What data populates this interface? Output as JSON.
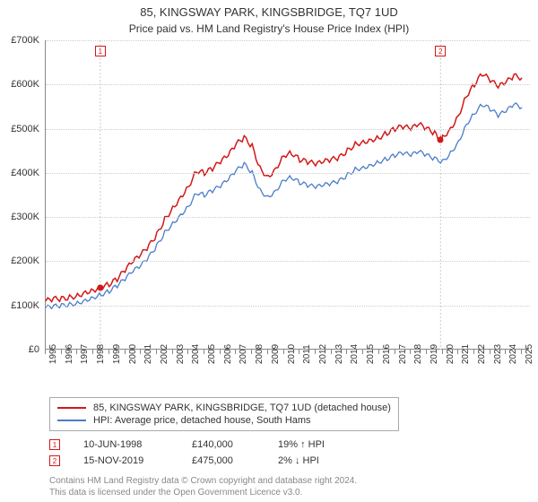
{
  "title_line1": "85, KINGSWAY PARK, KINGSBRIDGE, TQ7 1UD",
  "title_line2": "Price paid vs. HM Land Registry's House Price Index (HPI)",
  "chart": {
    "type": "line",
    "background_color": "#ffffff",
    "grid_color": "#cccccc",
    "axis_color": "#888888",
    "label_fontsize": 11,
    "x_ticks": [
      "1995",
      "1996",
      "1997",
      "1998",
      "1999",
      "2000",
      "2001",
      "2002",
      "2003",
      "2004",
      "2005",
      "2006",
      "2007",
      "2008",
      "2009",
      "2010",
      "2011",
      "2012",
      "2013",
      "2014",
      "2015",
      "2016",
      "2017",
      "2018",
      "2019",
      "2020",
      "2021",
      "2022",
      "2023",
      "2024",
      "2025"
    ],
    "x_min": 1995,
    "x_max": 2025.5,
    "y_min": 0,
    "y_max": 700,
    "y_currency_prefix": "£",
    "y_ticks": [
      {
        "val": 0,
        "label": "£0"
      },
      {
        "val": 100,
        "label": "£100K"
      },
      {
        "val": 200,
        "label": "£200K"
      },
      {
        "val": 300,
        "label": "£300K"
      },
      {
        "val": 400,
        "label": "£400K"
      },
      {
        "val": 500,
        "label": "£500K"
      },
      {
        "val": 600,
        "label": "£600K"
      },
      {
        "val": 700,
        "label": "£700K"
      }
    ],
    "series": [
      {
        "id": "property",
        "label": "85, KINGSWAY PARK, KINGSBRIDGE, TQ7 1UD (detached house)",
        "color": "#d31818",
        "line_width": 1.5,
        "points": [
          [
            1995.0,
            110
          ],
          [
            1995.5,
            115
          ],
          [
            1996.0,
            115
          ],
          [
            1996.5,
            118
          ],
          [
            1997.0,
            122
          ],
          [
            1997.5,
            130
          ],
          [
            1998.0,
            135
          ],
          [
            1998.44,
            140
          ],
          [
            1999.0,
            148
          ],
          [
            1999.5,
            160
          ],
          [
            2000.0,
            180
          ],
          [
            2000.5,
            200
          ],
          [
            2001.0,
            215
          ],
          [
            2001.5,
            235
          ],
          [
            2002.0,
            260
          ],
          [
            2002.5,
            295
          ],
          [
            2003.0,
            320
          ],
          [
            2003.5,
            345
          ],
          [
            2004.0,
            370
          ],
          [
            2004.5,
            405
          ],
          [
            2005.0,
            400
          ],
          [
            2005.5,
            410
          ],
          [
            2006.0,
            425
          ],
          [
            2006.5,
            440
          ],
          [
            2007.0,
            465
          ],
          [
            2007.5,
            480
          ],
          [
            2008.0,
            460
          ],
          [
            2008.5,
            410
          ],
          [
            2009.0,
            390
          ],
          [
            2009.5,
            410
          ],
          [
            2010.0,
            440
          ],
          [
            2010.5,
            445
          ],
          [
            2011.0,
            430
          ],
          [
            2011.5,
            425
          ],
          [
            2012.0,
            420
          ],
          [
            2012.5,
            425
          ],
          [
            2013.0,
            430
          ],
          [
            2013.5,
            435
          ],
          [
            2014.0,
            450
          ],
          [
            2014.5,
            465
          ],
          [
            2015.0,
            470
          ],
          [
            2015.5,
            475
          ],
          [
            2016.0,
            480
          ],
          [
            2016.5,
            490
          ],
          [
            2017.0,
            500
          ],
          [
            2017.5,
            505
          ],
          [
            2018.0,
            500
          ],
          [
            2018.5,
            510
          ],
          [
            2019.0,
            500
          ],
          [
            2019.5,
            490
          ],
          [
            2019.87,
            475
          ],
          [
            2020.0,
            480
          ],
          [
            2020.5,
            500
          ],
          [
            2021.0,
            530
          ],
          [
            2021.5,
            575
          ],
          [
            2022.0,
            600
          ],
          [
            2022.5,
            625
          ],
          [
            2023.0,
            610
          ],
          [
            2023.5,
            595
          ],
          [
            2024.0,
            605
          ],
          [
            2024.5,
            620
          ],
          [
            2025.0,
            615
          ]
        ]
      },
      {
        "id": "hpi",
        "label": "HPI: Average price, detached house, South Hams",
        "color": "#4a7dc9",
        "line_width": 1.3,
        "points": [
          [
            1995.0,
            95
          ],
          [
            1995.5,
            98
          ],
          [
            1996.0,
            100
          ],
          [
            1996.5,
            102
          ],
          [
            1997.0,
            105
          ],
          [
            1997.5,
            112
          ],
          [
            1998.0,
            118
          ],
          [
            1998.5,
            125
          ],
          [
            1999.0,
            132
          ],
          [
            1999.5,
            145
          ],
          [
            2000.0,
            160
          ],
          [
            2000.5,
            178
          ],
          [
            2001.0,
            190
          ],
          [
            2001.5,
            210
          ],
          [
            2002.0,
            235
          ],
          [
            2002.5,
            265
          ],
          [
            2003.0,
            285
          ],
          [
            2003.5,
            305
          ],
          [
            2004.0,
            325
          ],
          [
            2004.5,
            355
          ],
          [
            2005.0,
            350
          ],
          [
            2005.5,
            360
          ],
          [
            2006.0,
            370
          ],
          [
            2006.5,
            385
          ],
          [
            2007.0,
            405
          ],
          [
            2007.5,
            420
          ],
          [
            2008.0,
            400
          ],
          [
            2008.5,
            360
          ],
          [
            2009.0,
            345
          ],
          [
            2009.5,
            360
          ],
          [
            2010.0,
            385
          ],
          [
            2010.5,
            390
          ],
          [
            2011.0,
            378
          ],
          [
            2011.5,
            372
          ],
          [
            2012.0,
            368
          ],
          [
            2012.5,
            372
          ],
          [
            2013.0,
            376
          ],
          [
            2013.5,
            382
          ],
          [
            2014.0,
            395
          ],
          [
            2014.5,
            408
          ],
          [
            2015.0,
            412
          ],
          [
            2015.5,
            418
          ],
          [
            2016.0,
            425
          ],
          [
            2016.5,
            432
          ],
          [
            2017.0,
            440
          ],
          [
            2017.5,
            445
          ],
          [
            2018.0,
            440
          ],
          [
            2018.5,
            448
          ],
          [
            2019.0,
            440
          ],
          [
            2019.5,
            432
          ],
          [
            2020.0,
            425
          ],
          [
            2020.5,
            445
          ],
          [
            2021.0,
            470
          ],
          [
            2021.5,
            510
          ],
          [
            2022.0,
            535
          ],
          [
            2022.5,
            555
          ],
          [
            2023.0,
            545
          ],
          [
            2023.5,
            530
          ],
          [
            2024.0,
            540
          ],
          [
            2024.5,
            555
          ],
          [
            2025.0,
            548
          ]
        ]
      }
    ],
    "sale_markers": [
      {
        "num": "1",
        "x": 1998.44,
        "y": 140,
        "color": "#d31818"
      },
      {
        "num": "2",
        "x": 2019.87,
        "y": 475,
        "color": "#d31818"
      }
    ],
    "marker_vline_color": "#cccccc"
  },
  "sales": [
    {
      "marker": "1",
      "color": "#d31818",
      "date": "10-JUN-1998",
      "price": "£140,000",
      "pct": "19% ↑ HPI"
    },
    {
      "marker": "2",
      "color": "#d31818",
      "date": "15-NOV-2019",
      "price": "£475,000",
      "pct": "2% ↓ HPI"
    }
  ],
  "footer": {
    "line1": "Contains HM Land Registry data © Crown copyright and database right 2024.",
    "line2": "This data is licensed under the Open Government Licence v3.0."
  }
}
